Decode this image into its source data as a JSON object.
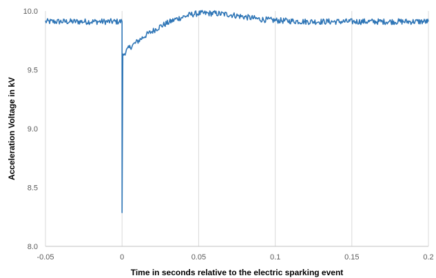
{
  "colors": {
    "series": "#2e75b6",
    "grid": "#d9d9d9",
    "axis": "#bfbfbf",
    "tick_text": "#595959",
    "background": "#ffffff"
  },
  "chart_data": {
    "type": "line",
    "title": "",
    "xlabel": "Time in seconds relative to the electric sparking event",
    "ylabel": "Acceleration Voltage in kV",
    "xlim": [
      -0.05,
      0.2
    ],
    "ylim": [
      8.0,
      10.0
    ],
    "x_ticks": [
      -0.05,
      0,
      0.05,
      0.1,
      0.15,
      0.2
    ],
    "x_tick_labels": [
      "-0.05",
      "0",
      "0.05",
      "0.1",
      "0.15",
      "0.2"
    ],
    "y_ticks": [
      8.0,
      8.5,
      9.0,
      9.5,
      10.0
    ],
    "y_tick_labels": [
      "8.0",
      "8.5",
      "9.0",
      "9.5",
      "10.0"
    ],
    "grid": {
      "vertical": true,
      "horizontal": false
    },
    "legend": "none",
    "series": [
      {
        "noise_band_kv": 0.025,
        "x": [
          -0.05,
          -0.04,
          -0.03,
          -0.02,
          -0.01,
          -0.001,
          0.0,
          0.0,
          0.0005,
          0.002,
          0.005,
          0.01,
          0.015,
          0.02,
          0.025,
          0.03,
          0.035,
          0.04,
          0.045,
          0.05,
          0.055,
          0.06,
          0.065,
          0.07,
          0.075,
          0.08,
          0.085,
          0.09,
          0.095,
          0.1,
          0.11,
          0.12,
          0.13,
          0.14,
          0.15,
          0.16,
          0.17,
          0.18,
          0.19,
          0.2
        ],
        "values": [
          9.91,
          9.91,
          9.91,
          9.91,
          9.91,
          9.91,
          9.91,
          8.3,
          9.62,
          9.65,
          9.69,
          9.74,
          9.79,
          9.83,
          9.87,
          9.9,
          9.93,
          9.95,
          9.97,
          9.98,
          9.98,
          9.98,
          9.975,
          9.97,
          9.96,
          9.95,
          9.94,
          9.93,
          9.925,
          9.92,
          9.915,
          9.91,
          9.91,
          9.91,
          9.91,
          9.91,
          9.91,
          9.91,
          9.91,
          9.91
        ]
      }
    ]
  }
}
